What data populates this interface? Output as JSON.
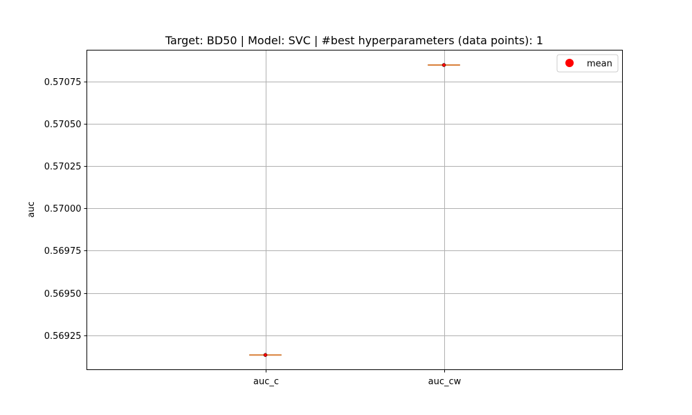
{
  "chart_data": {
    "type": "box",
    "title": "Target: BD50 | Model: SVC | #best hyperparameters (data points): 1",
    "xlabel": "",
    "ylabel": "auc",
    "categories": [
      "auc_c",
      "auc_cw"
    ],
    "values": [
      0.569134,
      0.570847
    ],
    "means": [
      0.569134,
      0.570847
    ],
    "ylim": [
      0.569047,
      0.570935
    ],
    "yticks": [
      0.56925,
      0.5695,
      0.56975,
      0.57,
      0.57025,
      0.5705,
      0.57075
    ],
    "ytick_labels": [
      "0.56925",
      "0.56950",
      "0.56975",
      "0.57000",
      "0.57025",
      "0.57050",
      "0.57075"
    ],
    "grid": true,
    "legend": {
      "position": "top-right",
      "entries": [
        "mean"
      ]
    },
    "colors": {
      "median": "#d9803a",
      "mean": "#ff0000",
      "grid": "#b0b0b0",
      "axis": "#000000"
    }
  }
}
